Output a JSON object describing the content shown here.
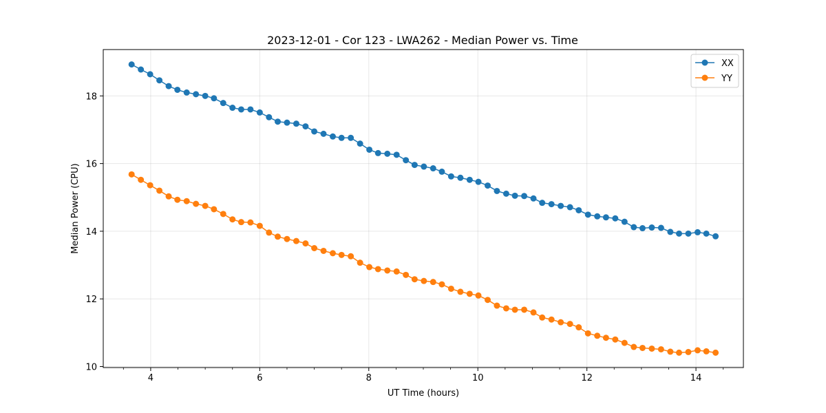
{
  "chart_data": {
    "type": "line",
    "title": "2023-12-01 - Cor 123 - LWA262 - Median Power vs. Time",
    "xlabel": "UT Time (hours)",
    "ylabel": "Median Power (CPU)",
    "xlim": [
      3.13,
      14.87
    ],
    "ylim": [
      9.97,
      19.37
    ],
    "xticks": [
      4,
      6,
      8,
      10,
      12,
      14
    ],
    "yticks": [
      10,
      12,
      14,
      16,
      18
    ],
    "grid": true,
    "legend_position": "top-right",
    "x": [
      3.65,
      3.82,
      3.99,
      4.16,
      4.33,
      4.49,
      4.66,
      4.83,
      5.0,
      5.16,
      5.33,
      5.5,
      5.66,
      5.83,
      6.0,
      6.17,
      6.33,
      6.5,
      6.67,
      6.84,
      7.0,
      7.17,
      7.34,
      7.5,
      7.67,
      7.84,
      8.01,
      8.17,
      8.34,
      8.51,
      8.68,
      8.84,
      9.01,
      9.18,
      9.34,
      9.51,
      9.68,
      9.85,
      10.01,
      10.18,
      10.35,
      10.52,
      10.68,
      10.85,
      11.02,
      11.18,
      11.35,
      11.52,
      11.69,
      11.85,
      12.02,
      12.19,
      12.35,
      12.52,
      12.69,
      12.86,
      13.02,
      13.19,
      13.36,
      13.53,
      13.69,
      13.86,
      14.03,
      14.19,
      14.36
    ],
    "series": [
      {
        "name": "XX",
        "color": "#1f77b4",
        "values": [
          18.93,
          18.78,
          18.64,
          18.46,
          18.29,
          18.18,
          18.1,
          18.05,
          18.0,
          17.93,
          17.79,
          17.65,
          17.6,
          17.6,
          17.51,
          17.37,
          17.24,
          17.21,
          17.18,
          17.1,
          16.95,
          16.88,
          16.8,
          16.76,
          16.76,
          16.59,
          16.41,
          16.31,
          16.29,
          16.26,
          16.1,
          15.96,
          15.91,
          15.86,
          15.76,
          15.62,
          15.58,
          15.52,
          15.46,
          15.35,
          15.19,
          15.11,
          15.05,
          15.04,
          14.97,
          14.84,
          14.8,
          14.75,
          14.71,
          14.62,
          14.49,
          14.44,
          14.41,
          14.38,
          14.28,
          14.12,
          14.09,
          14.11,
          14.1,
          13.98,
          13.93,
          13.93,
          13.97,
          13.93,
          13.85
        ]
      },
      {
        "name": "YY",
        "color": "#ff7f0e",
        "values": [
          15.68,
          15.52,
          15.36,
          15.2,
          15.03,
          14.93,
          14.89,
          14.81,
          14.75,
          14.65,
          14.51,
          14.35,
          14.27,
          14.26,
          14.16,
          13.96,
          13.84,
          13.77,
          13.71,
          13.64,
          13.5,
          13.42,
          13.35,
          13.3,
          13.26,
          13.07,
          12.94,
          12.88,
          12.84,
          12.81,
          12.71,
          12.58,
          12.53,
          12.5,
          12.43,
          12.3,
          12.21,
          12.15,
          12.1,
          11.97,
          11.8,
          11.72,
          11.68,
          11.68,
          11.6,
          11.45,
          11.39,
          11.31,
          11.26,
          11.16,
          10.98,
          10.91,
          10.85,
          10.8,
          10.7,
          10.58,
          10.55,
          10.53,
          10.51,
          10.44,
          10.41,
          10.43,
          10.48,
          10.45,
          10.41
        ]
      }
    ]
  }
}
